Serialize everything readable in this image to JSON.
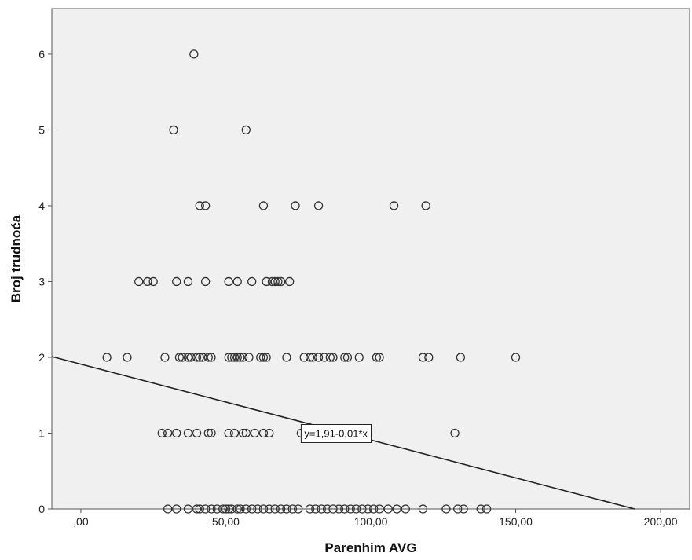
{
  "chart_data": {
    "type": "scatter",
    "title": "",
    "xlabel": "Parenhim AVG",
    "ylabel": "Broj trudnoća",
    "xlim": [
      -10,
      210
    ],
    "ylim": [
      0,
      6.6
    ],
    "x_ticks": [
      0,
      50,
      100,
      150,
      200
    ],
    "x_tick_labels": [
      ",00",
      "50,00",
      "100,00",
      "150,00",
      "200,00"
    ],
    "y_ticks": [
      0,
      1,
      2,
      3,
      4,
      5,
      6
    ],
    "y_tick_labels": [
      "0",
      "1",
      "2",
      "3",
      "4",
      "5",
      "6"
    ],
    "grid": false,
    "colors": {
      "plot_bg": "#f0f0f0",
      "marker": "#333333",
      "line": "#222222"
    },
    "fit_line": {
      "intercept": 1.91,
      "slope": -0.01,
      "label": "y=1,91-0,01*x",
      "label_at": {
        "x": 76,
        "y": 1.0
      }
    },
    "points": [
      {
        "x": 39,
        "y": 6
      },
      {
        "x": 32,
        "y": 5
      },
      {
        "x": 57,
        "y": 5
      },
      {
        "x": 41,
        "y": 4
      },
      {
        "x": 43,
        "y": 4
      },
      {
        "x": 63,
        "y": 4
      },
      {
        "x": 74,
        "y": 4
      },
      {
        "x": 82,
        "y": 4
      },
      {
        "x": 108,
        "y": 4
      },
      {
        "x": 119,
        "y": 4
      },
      {
        "x": 20,
        "y": 3
      },
      {
        "x": 23,
        "y": 3
      },
      {
        "x": 25,
        "y": 3
      },
      {
        "x": 33,
        "y": 3
      },
      {
        "x": 37,
        "y": 3
      },
      {
        "x": 43,
        "y": 3
      },
      {
        "x": 51,
        "y": 3
      },
      {
        "x": 54,
        "y": 3
      },
      {
        "x": 59,
        "y": 3
      },
      {
        "x": 64,
        "y": 3
      },
      {
        "x": 66,
        "y": 3
      },
      {
        "x": 67,
        "y": 3
      },
      {
        "x": 68,
        "y": 3
      },
      {
        "x": 69,
        "y": 3
      },
      {
        "x": 72,
        "y": 3
      },
      {
        "x": 9,
        "y": 2
      },
      {
        "x": 16,
        "y": 2
      },
      {
        "x": 29,
        "y": 2
      },
      {
        "x": 34,
        "y": 2
      },
      {
        "x": 35,
        "y": 2
      },
      {
        "x": 37,
        "y": 2
      },
      {
        "x": 38,
        "y": 2
      },
      {
        "x": 40,
        "y": 2
      },
      {
        "x": 41,
        "y": 2
      },
      {
        "x": 42,
        "y": 2
      },
      {
        "x": 44,
        "y": 2
      },
      {
        "x": 45,
        "y": 2
      },
      {
        "x": 51,
        "y": 2
      },
      {
        "x": 52,
        "y": 2
      },
      {
        "x": 53,
        "y": 2
      },
      {
        "x": 54,
        "y": 2
      },
      {
        "x": 55,
        "y": 2
      },
      {
        "x": 56,
        "y": 2
      },
      {
        "x": 58,
        "y": 2
      },
      {
        "x": 62,
        "y": 2
      },
      {
        "x": 63,
        "y": 2
      },
      {
        "x": 64,
        "y": 2
      },
      {
        "x": 71,
        "y": 2
      },
      {
        "x": 77,
        "y": 2
      },
      {
        "x": 79,
        "y": 2
      },
      {
        "x": 80,
        "y": 2
      },
      {
        "x": 82,
        "y": 2
      },
      {
        "x": 84,
        "y": 2
      },
      {
        "x": 86,
        "y": 2
      },
      {
        "x": 87,
        "y": 2
      },
      {
        "x": 91,
        "y": 2
      },
      {
        "x": 92,
        "y": 2
      },
      {
        "x": 96,
        "y": 2
      },
      {
        "x": 102,
        "y": 2
      },
      {
        "x": 103,
        "y": 2
      },
      {
        "x": 118,
        "y": 2
      },
      {
        "x": 120,
        "y": 2
      },
      {
        "x": 131,
        "y": 2
      },
      {
        "x": 150,
        "y": 2
      },
      {
        "x": 28,
        "y": 1
      },
      {
        "x": 30,
        "y": 1
      },
      {
        "x": 33,
        "y": 1
      },
      {
        "x": 37,
        "y": 1
      },
      {
        "x": 40,
        "y": 1
      },
      {
        "x": 44,
        "y": 1
      },
      {
        "x": 45,
        "y": 1
      },
      {
        "x": 51,
        "y": 1
      },
      {
        "x": 53,
        "y": 1
      },
      {
        "x": 56,
        "y": 1
      },
      {
        "x": 57,
        "y": 1
      },
      {
        "x": 60,
        "y": 1
      },
      {
        "x": 63,
        "y": 1
      },
      {
        "x": 65,
        "y": 1
      },
      {
        "x": 76,
        "y": 1
      },
      {
        "x": 129,
        "y": 1
      },
      {
        "x": 30,
        "y": 0
      },
      {
        "x": 33,
        "y": 0
      },
      {
        "x": 37,
        "y": 0
      },
      {
        "x": 40,
        "y": 0
      },
      {
        "x": 41,
        "y": 0
      },
      {
        "x": 43,
        "y": 0
      },
      {
        "x": 45,
        "y": 0
      },
      {
        "x": 47,
        "y": 0
      },
      {
        "x": 49,
        "y": 0
      },
      {
        "x": 50,
        "y": 0
      },
      {
        "x": 51,
        "y": 0
      },
      {
        "x": 52,
        "y": 0
      },
      {
        "x": 54,
        "y": 0
      },
      {
        "x": 55,
        "y": 0
      },
      {
        "x": 57,
        "y": 0
      },
      {
        "x": 59,
        "y": 0
      },
      {
        "x": 61,
        "y": 0
      },
      {
        "x": 63,
        "y": 0
      },
      {
        "x": 65,
        "y": 0
      },
      {
        "x": 67,
        "y": 0
      },
      {
        "x": 69,
        "y": 0
      },
      {
        "x": 71,
        "y": 0
      },
      {
        "x": 73,
        "y": 0
      },
      {
        "x": 75,
        "y": 0
      },
      {
        "x": 79,
        "y": 0
      },
      {
        "x": 81,
        "y": 0
      },
      {
        "x": 83,
        "y": 0
      },
      {
        "x": 85,
        "y": 0
      },
      {
        "x": 87,
        "y": 0
      },
      {
        "x": 89,
        "y": 0
      },
      {
        "x": 91,
        "y": 0
      },
      {
        "x": 93,
        "y": 0
      },
      {
        "x": 95,
        "y": 0
      },
      {
        "x": 97,
        "y": 0
      },
      {
        "x": 99,
        "y": 0
      },
      {
        "x": 101,
        "y": 0
      },
      {
        "x": 103,
        "y": 0
      },
      {
        "x": 106,
        "y": 0
      },
      {
        "x": 109,
        "y": 0
      },
      {
        "x": 112,
        "y": 0
      },
      {
        "x": 118,
        "y": 0
      },
      {
        "x": 126,
        "y": 0
      },
      {
        "x": 130,
        "y": 0
      },
      {
        "x": 132,
        "y": 0
      },
      {
        "x": 138,
        "y": 0
      },
      {
        "x": 140,
        "y": 0
      }
    ]
  }
}
